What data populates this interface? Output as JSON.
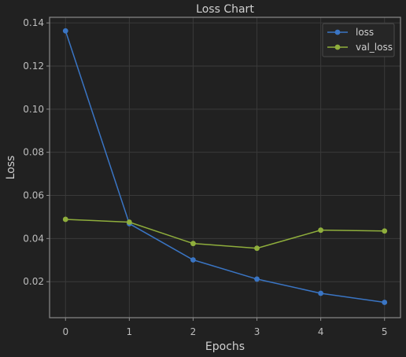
{
  "chart_data": {
    "type": "line",
    "title": "Loss Chart",
    "xlabel": "Epochs",
    "ylabel": "Loss",
    "x": [
      0,
      1,
      2,
      3,
      4,
      5
    ],
    "xlim": [
      -0.25,
      5.25
    ],
    "ylim": [
      0.0033,
      0.1426
    ],
    "xticks": [
      "0",
      "1",
      "2",
      "3",
      "4",
      "5"
    ],
    "yticks": [
      "0.02",
      "0.04",
      "0.06",
      "0.08",
      "0.10",
      "0.12",
      "0.14"
    ],
    "grid": true,
    "legend_position": "top-right",
    "series": [
      {
        "name": "loss",
        "color": "#3a75c4",
        "values": [
          0.1363,
          0.0469,
          0.0301,
          0.0212,
          0.0146,
          0.0104
        ]
      },
      {
        "name": "val_loss",
        "color": "#8fae3c",
        "values": [
          0.0489,
          0.0476,
          0.0377,
          0.0355,
          0.0439,
          0.0435
        ]
      }
    ]
  }
}
